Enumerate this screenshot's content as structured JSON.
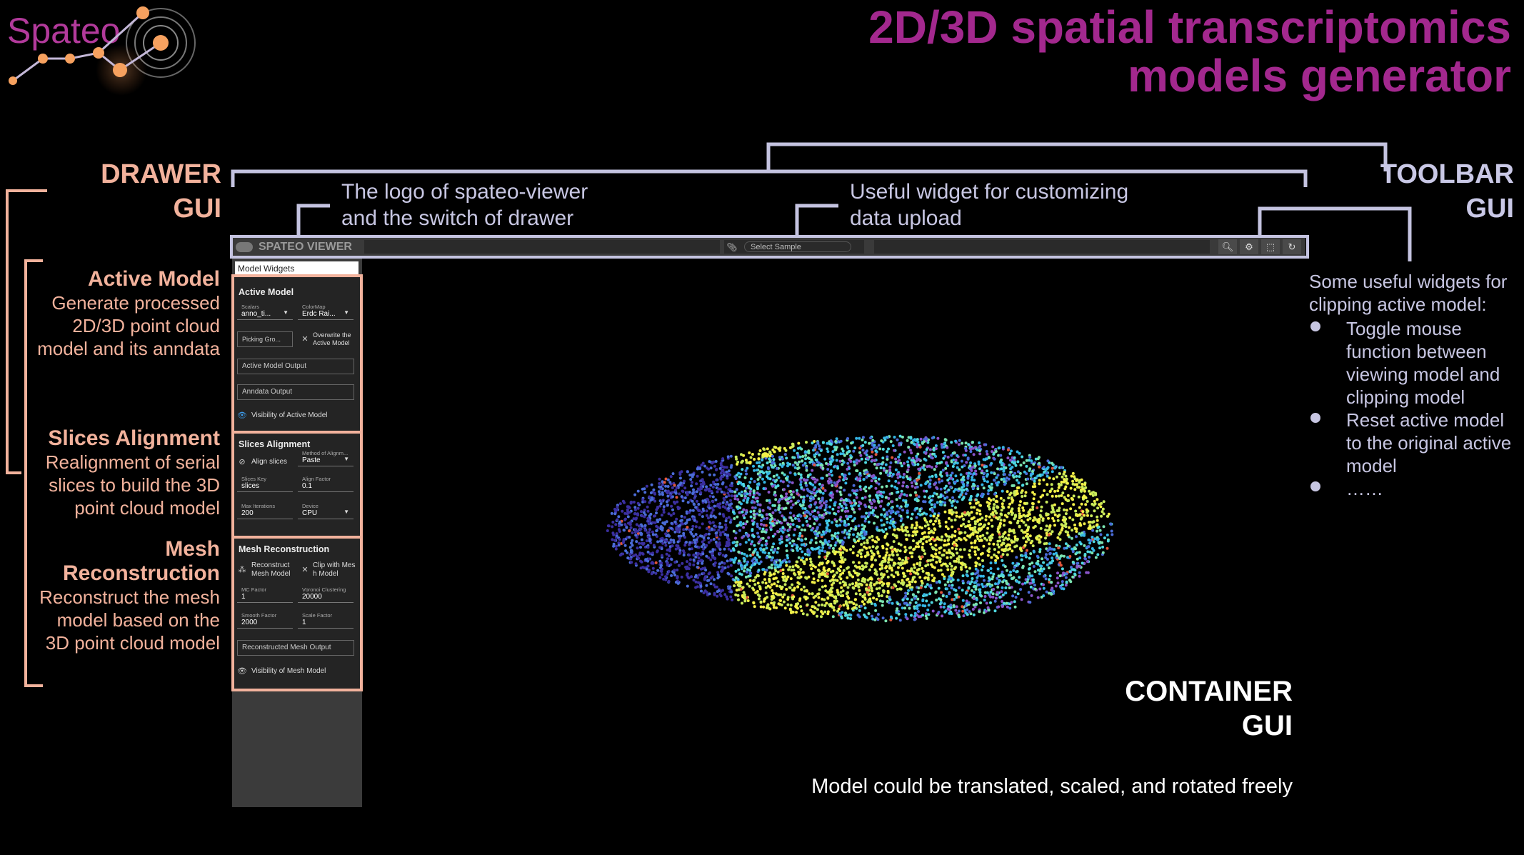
{
  "title": {
    "line1": "2D/3D spatial transcriptomics",
    "line2": "models generator"
  },
  "logo": {
    "text": "Spateo"
  },
  "drawer_gui": {
    "line1": "DRAWER",
    "line2": "GUI"
  },
  "toolbar_gui": {
    "line1": "TOOLBAR",
    "line2": "GUI"
  },
  "container_gui": {
    "line1": "CONTAINER",
    "line2": "GUI",
    "caption": "Model could be translated, scaled, and rotated freely"
  },
  "callouts": {
    "logo": {
      "line1": "The logo of spateo-viewer",
      "line2": "and the switch of drawer"
    },
    "upload": {
      "line1": "Useful widget for customizing",
      "line2": "data upload"
    }
  },
  "left_sections": {
    "active_model": {
      "title": "Active Model",
      "lines": [
        "Generate processed",
        "2D/3D point cloud",
        "model and its anndata"
      ]
    },
    "slices_alignment": {
      "title": "Slices Alignment",
      "lines": [
        "Realignment of serial",
        "slices to build the 3D",
        "point cloud model"
      ]
    },
    "mesh_reconstruction": {
      "title1": "Mesh",
      "title2": "Reconstruction",
      "lines": [
        "Reconstruct the mesh",
        "model based on the",
        "3D point cloud model"
      ]
    }
  },
  "right_notes": {
    "intro1": "Some useful widgets for",
    "intro2": "clipping active model:",
    "bullets": [
      [
        "Toggle mouse",
        "function between",
        "viewing model and",
        "clipping model"
      ],
      [
        "Reset active model",
        "to the original active",
        "model"
      ],
      [
        "……"
      ]
    ]
  },
  "toolbar": {
    "app_name": "SPATEO VIEWER",
    "select_placeholder": "Select Sample",
    "icons": [
      "search-icon",
      "settings-icon",
      "crop-icon",
      "reset-icon"
    ]
  },
  "drawer": {
    "header": "Model Widgets",
    "active_model": {
      "title": "Active Model",
      "scalars_label": "Scalars",
      "scalars_value": "anno_ti...",
      "colormap_label": "ColorMap",
      "colormap_value": "Erdc Rai...",
      "picking_value": "Picking Gro...",
      "overwrite_label1": "Overwrite the",
      "overwrite_label2": "Active Model",
      "active_output": "Active Model Output",
      "anndata_output": "Anndata Output",
      "visibility": "Visibility of Active Model"
    },
    "slices_alignment": {
      "title": "Slices Alignment",
      "align_slices": "Align slices",
      "method_label": "Method of Alignm...",
      "method_value": "Paste",
      "slices_key_label": "Slices Key",
      "slices_key_value": "slices",
      "align_factor_label": "Align Factor",
      "align_factor_value": "0.1",
      "max_iter_label": "Max Iterations",
      "max_iter_value": "200",
      "device_label": "Device",
      "device_value": "CPU"
    },
    "mesh_reconstruction": {
      "title": "Mesh Reconstruction",
      "reconstruct1": "Reconstruct",
      "reconstruct2": "Mesh Model",
      "clip1": "Clip with Mes",
      "clip2": "h Model",
      "mc_label": "MC Factor",
      "mc_value": "1",
      "voronoi_label": "Voronoi Clustering",
      "voronoi_value": "20000",
      "smooth_label": "Smooth Factor",
      "smooth_value": "2000",
      "scale_label": "Scale Factor",
      "scale_value": "1",
      "mesh_output": "Reconstructed Mesh Output",
      "visibility": "Visibility of Mesh Model"
    }
  },
  "colors": {
    "title": "#a3288e",
    "peach": "#f2b29c",
    "lavender": "#c9c8e6",
    "background": "#000000"
  }
}
